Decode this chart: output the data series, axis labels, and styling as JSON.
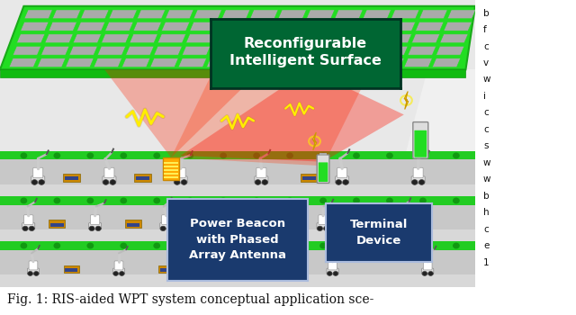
{
  "fig_width": 6.4,
  "fig_height": 3.5,
  "dpi": 100,
  "bg_color": "#ffffff",
  "caption_text": "Fig. 1: RIS-aided WPT system conceptual application sce-",
  "caption_fontsize": 10.0,
  "label_ris": "Reconfigurable\nIntelligent Surface",
  "label_pb": "Power Beacon\nwith Phased\nArray Antenna",
  "label_td": "Terminal\nDevice",
  "ris_green": "#22dd22",
  "ris_grid_color": "#11bb11",
  "ris_cell_color": "#bbbbbb",
  "belt_green": "#22cc22",
  "floor_color": "#e0e0e0",
  "wall_color": "#d0d0d0",
  "beam_red": "#ff2200",
  "label_ris_bg": "#006633",
  "label_pb_bg": "#1a3a6e",
  "label_td_bg": "#1a3a6e",
  "right_col_letters": [
    "b",
    "f",
    "c",
    "v",
    "w",
    "i",
    "c",
    "c",
    "s",
    "w",
    "w",
    "b",
    "h",
    "c",
    "e",
    "1"
  ]
}
